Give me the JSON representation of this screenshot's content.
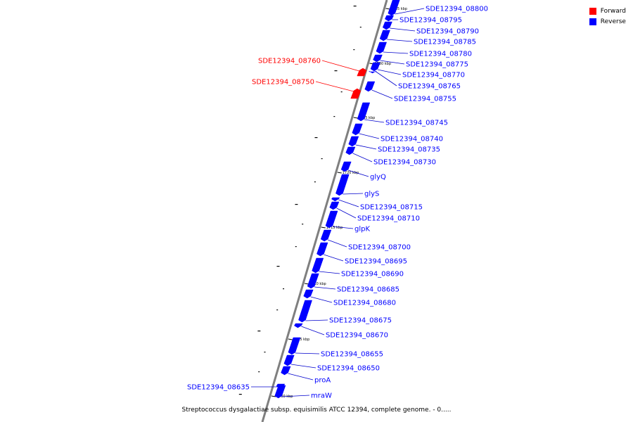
{
  "legend": {
    "forward_label": "Forward",
    "reverse_label": "Reverse",
    "forward_color": "#ff0000",
    "reverse_color": "#0000ff"
  },
  "caption": "Streptococcus dysgalactiae subsp. equisimilis ATCC 12394, complete genome. - 0.....",
  "colors": {
    "backbone": "#7f7f7f",
    "forward": "#ff0000",
    "reverse": "#0000ff",
    "line": "#0000cc"
  },
  "ticks": [
    {
      "label": "1735 kbp"
    },
    {
      "label": "1730 kbp"
    },
    {
      "label": "1725 kbp"
    },
    {
      "label": "1720 kbp"
    },
    {
      "label": "1715 kbp"
    },
    {
      "label": "1710 kbp"
    },
    {
      "label": "1705 kbp"
    },
    {
      "label": "1700 kbp"
    }
  ],
  "genes": [
    {
      "name": "SDE12394_08800",
      "strand": "reverse"
    },
    {
      "name": "SDE12394_08795",
      "strand": "reverse"
    },
    {
      "name": "SDE12394_08790",
      "strand": "reverse"
    },
    {
      "name": "SDE12394_08785",
      "strand": "reverse"
    },
    {
      "name": "SDE12394_08780",
      "strand": "reverse"
    },
    {
      "name": "SDE12394_08775",
      "strand": "reverse"
    },
    {
      "name": "SDE12394_08770",
      "strand": "reverse"
    },
    {
      "name": "SDE12394_08765",
      "strand": "reverse"
    },
    {
      "name": "SDE12394_08760",
      "strand": "forward"
    },
    {
      "name": "SDE12394_08755",
      "strand": "reverse"
    },
    {
      "name": "SDE12394_08750",
      "strand": "forward"
    },
    {
      "name": "SDE12394_08745",
      "strand": "reverse"
    },
    {
      "name": "SDE12394_08740",
      "strand": "reverse"
    },
    {
      "name": "SDE12394_08735",
      "strand": "reverse"
    },
    {
      "name": "SDE12394_08730",
      "strand": "reverse"
    },
    {
      "name": "glyQ",
      "strand": "reverse"
    },
    {
      "name": "glyS",
      "strand": "reverse"
    },
    {
      "name": "SDE12394_08715",
      "strand": "reverse"
    },
    {
      "name": "SDE12394_08710",
      "strand": "reverse"
    },
    {
      "name": "glpK",
      "strand": "reverse"
    },
    {
      "name": "SDE12394_08700",
      "strand": "reverse"
    },
    {
      "name": "SDE12394_08695",
      "strand": "reverse"
    },
    {
      "name": "SDE12394_08690",
      "strand": "reverse"
    },
    {
      "name": "SDE12394_08685",
      "strand": "reverse"
    },
    {
      "name": "SDE12394_08680",
      "strand": "reverse"
    },
    {
      "name": "SDE12394_08675",
      "strand": "reverse"
    },
    {
      "name": "SDE12394_08670",
      "strand": "reverse"
    },
    {
      "name": "SDE12394_08655",
      "strand": "reverse"
    },
    {
      "name": "SDE12394_08650",
      "strand": "reverse"
    },
    {
      "name": "proA",
      "strand": "reverse"
    },
    {
      "name": "SDE12394_08635",
      "strand": "reverse"
    },
    {
      "name": "mraW",
      "strand": "reverse"
    }
  ]
}
